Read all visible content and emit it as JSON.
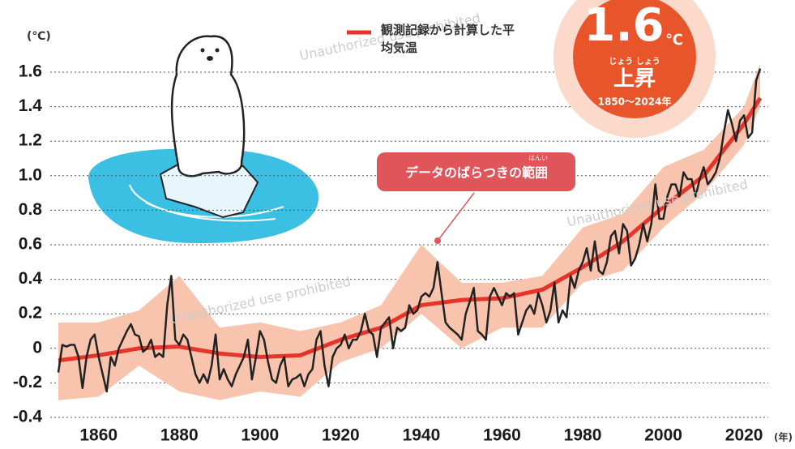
{
  "chart_data": {
    "type": "line",
    "y_unit": "(℃)",
    "x_unit": "(年)",
    "xlim": [
      1848,
      2026
    ],
    "xticks": [
      1860,
      1880,
      1900,
      1920,
      1940,
      1960,
      1980,
      2000,
      2020
    ],
    "ylim": [
      -0.4,
      1.6
    ],
    "yticks": [
      -0.4,
      -0.2,
      0,
      0.2,
      0.4,
      0.6,
      0.8,
      {
        "value": 1,
        "label": "1.0"
      },
      1.2,
      1.4,
      1.6
    ],
    "grid": true,
    "annual": {
      "color": "#222222",
      "x": [
        1850,
        1851,
        1852,
        1853,
        1854,
        1855,
        1856,
        1857,
        1858,
        1859,
        1860,
        1861,
        1862,
        1863,
        1864,
        1865,
        1866,
        1867,
        1868,
        1869,
        1870,
        1871,
        1872,
        1873,
        1874,
        1875,
        1876,
        1877,
        1878,
        1879,
        1880,
        1881,
        1882,
        1883,
        1884,
        1885,
        1886,
        1887,
        1888,
        1889,
        1890,
        1891,
        1892,
        1893,
        1894,
        1895,
        1896,
        1897,
        1898,
        1899,
        1900,
        1901,
        1902,
        1903,
        1904,
        1905,
        1906,
        1907,
        1908,
        1909,
        1910,
        1911,
        1912,
        1913,
        1914,
        1915,
        1916,
        1917,
        1918,
        1919,
        1920,
        1921,
        1922,
        1923,
        1924,
        1925,
        1926,
        1927,
        1928,
        1929,
        1930,
        1931,
        1932,
        1933,
        1934,
        1935,
        1936,
        1937,
        1938,
        1939,
        1940,
        1941,
        1942,
        1943,
        1944,
        1945,
        1946,
        1947,
        1948,
        1949,
        1950,
        1951,
        1952,
        1953,
        1954,
        1955,
        1956,
        1957,
        1958,
        1959,
        1960,
        1961,
        1962,
        1963,
        1964,
        1965,
        1966,
        1967,
        1968,
        1969,
        1970,
        1971,
        1972,
        1973,
        1974,
        1975,
        1976,
        1977,
        1978,
        1979,
        1980,
        1981,
        1982,
        1983,
        1984,
        1985,
        1986,
        1987,
        1988,
        1989,
        1990,
        1991,
        1992,
        1993,
        1994,
        1995,
        1996,
        1997,
        1998,
        1999,
        2000,
        2001,
        2002,
        2003,
        2004,
        2005,
        2006,
        2007,
        2008,
        2009,
        2010,
        2011,
        2012,
        2013,
        2014,
        2015,
        2016,
        2017,
        2018,
        2019,
        2020,
        2021,
        2022,
        2023,
        2024
      ],
      "values": [
        -0.14,
        0.02,
        0.01,
        0.02,
        0.02,
        -0.05,
        -0.23,
        -0.05,
        0.05,
        0.08,
        -0.05,
        -0.15,
        -0.25,
        -0.05,
        -0.1,
        0,
        0.05,
        0.1,
        0.14,
        0.08,
        0.07,
        -0.02,
        0,
        0.05,
        -0.05,
        -0.03,
        -0.05,
        0.25,
        0.42,
        0.05,
        0.02,
        0.08,
        0.05,
        -0.05,
        -0.15,
        -0.2,
        -0.15,
        -0.2,
        -0.1,
        0.08,
        -0.18,
        -0.12,
        -0.18,
        -0.22,
        -0.15,
        -0.1,
        -0.05,
        0.05,
        -0.18,
        -0.05,
        0.1,
        0.05,
        -0.08,
        -0.18,
        -0.2,
        -0.1,
        -0.05,
        -0.22,
        -0.18,
        -0.17,
        -0.15,
        -0.22,
        -0.15,
        -0.12,
        0.05,
        0.1,
        -0.1,
        -0.22,
        -0.05,
        0,
        0.02,
        0.08,
        0,
        0.05,
        0.05,
        0.1,
        0.2,
        0.1,
        0.08,
        -0.05,
        0.12,
        0.15,
        0.18,
        0,
        0.12,
        0.1,
        0.12,
        0.25,
        0.2,
        0.22,
        0.3,
        0.32,
        0.3,
        0.35,
        0.5,
        0.32,
        0.15,
        0.12,
        0.1,
        0.08,
        0.05,
        0.2,
        0.27,
        0.35,
        0.1,
        0.08,
        0.05,
        0.3,
        0.35,
        0.3,
        0.25,
        0.32,
        0.3,
        0.32,
        0.08,
        0.15,
        0.22,
        0.25,
        0.2,
        0.32,
        0.25,
        0.15,
        0.22,
        0.38,
        0.15,
        0.22,
        0.18,
        0.42,
        0.35,
        0.45,
        0.5,
        0.58,
        0.45,
        0.62,
        0.45,
        0.43,
        0.5,
        0.65,
        0.68,
        0.55,
        0.72,
        0.68,
        0.48,
        0.52,
        0.6,
        0.72,
        0.62,
        0.72,
        0.95,
        0.75,
        0.75,
        0.88,
        0.95,
        0.95,
        0.88,
        1.02,
        0.98,
        0.98,
        0.88,
        0.98,
        1.05,
        0.95,
        0.98,
        1.02,
        1.1,
        1.25,
        1.38,
        1.3,
        1.2,
        1.32,
        1.35,
        1.22,
        1.25,
        1.55,
        1.62
      ]
    },
    "smoothed": {
      "name": "観測記録から計算した平均気温",
      "color": "#e8332a",
      "x": [
        1850,
        1860,
        1870,
        1880,
        1890,
        1900,
        1910,
        1920,
        1930,
        1940,
        1950,
        1960,
        1970,
        1980,
        1990,
        2000,
        2010,
        2020,
        2024
      ],
      "values": [
        -0.07,
        -0.04,
        0,
        0.01,
        -0.03,
        -0.05,
        -0.04,
        0.05,
        0.12,
        0.25,
        0.28,
        0.29,
        0.34,
        0.47,
        0.62,
        0.82,
        1,
        1.3,
        1.45
      ]
    },
    "band": {
      "name": "データのばらつきの範囲",
      "ruby": "はんい",
      "color": "#f9c4ae",
      "x": [
        1850,
        1860,
        1870,
        1880,
        1890,
        1900,
        1910,
        1920,
        1930,
        1940,
        1950,
        1960,
        1970,
        1980,
        1990,
        2000,
        2010,
        2020,
        2024
      ],
      "low": [
        -0.3,
        -0.28,
        -0.1,
        -0.25,
        -0.3,
        -0.25,
        -0.28,
        -0.08,
        0,
        0.2,
        0,
        0.12,
        0.12,
        0.38,
        0.45,
        0.7,
        0.9,
        1.18,
        1.4
      ],
      "high": [
        0.15,
        0.15,
        0.22,
        0.42,
        0.12,
        0.15,
        0.1,
        0.15,
        0.25,
        0.6,
        0.38,
        0.38,
        0.42,
        0.7,
        0.78,
        1.05,
        1.15,
        1.4,
        1.65
      ]
    },
    "badge": {
      "value": "1.6",
      "unit": "℃",
      "ruby": "じょう しょう",
      "word": "上昇",
      "period": "1850〜2024年"
    },
    "watermark": "Unauthorized use prohibited"
  }
}
